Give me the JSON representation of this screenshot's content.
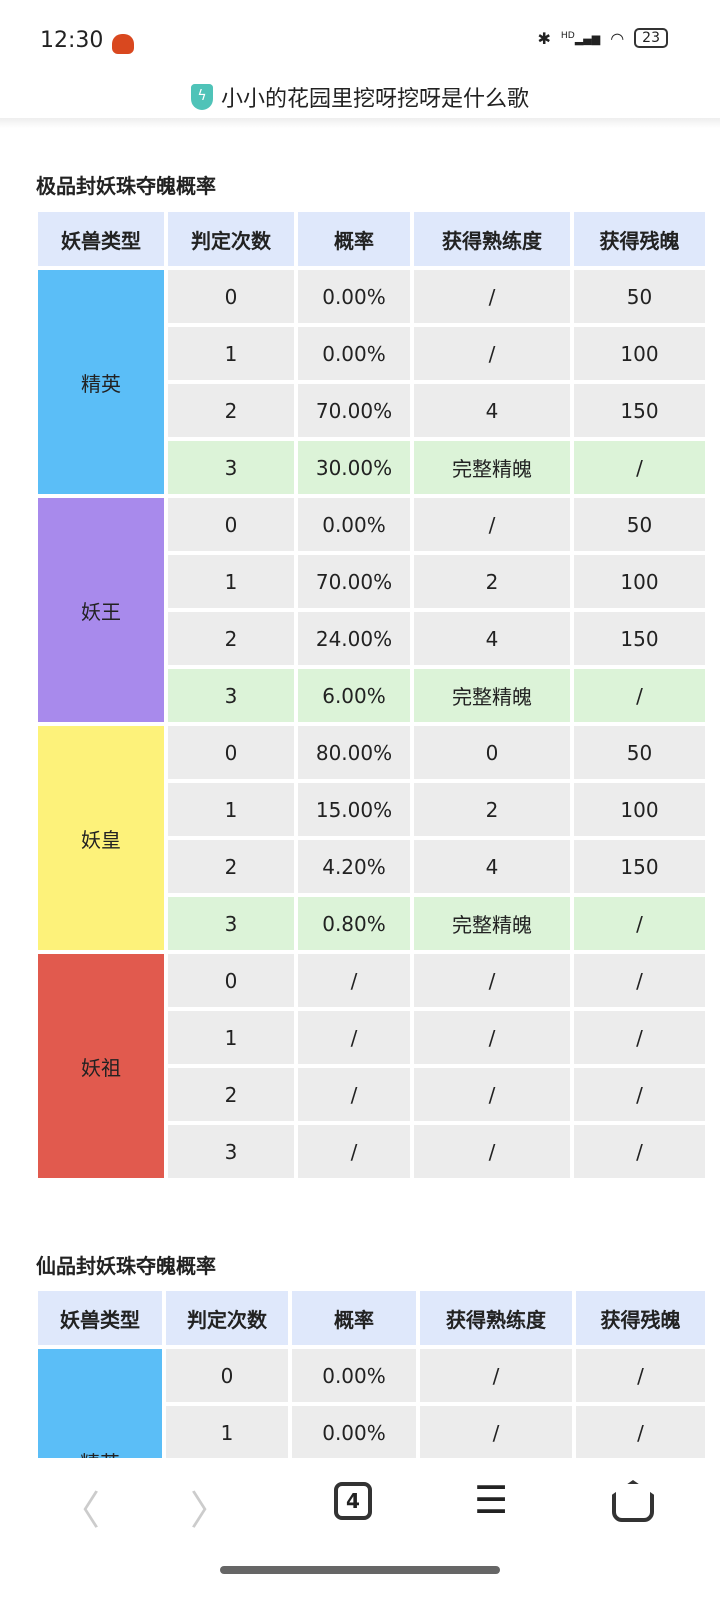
{
  "status": {
    "time": "12:30",
    "battery": "23",
    "network": "HD"
  },
  "urlbar": {
    "title": "小小的花园里挖呀挖呀是什么歌",
    "icon": "shield-bolt-icon"
  },
  "colors": {
    "elite": "#5bbef7",
    "king": "#a88aec",
    "emperor": "#fdf27a",
    "ancestor": "#e15a4e",
    "header": "#dfe8fb",
    "cell": "#ececec",
    "highlight": "#dcf3d8"
  },
  "headers": [
    "妖兽类型",
    "判定次数",
    "概率",
    "获得熟练度",
    "获得残魄"
  ],
  "tables": [
    {
      "title": "极品封妖珠夺魄概率",
      "groups": [
        {
          "type": "精英",
          "color": "#5bbef7",
          "rows": [
            [
              "0",
              "0.00%",
              "/",
              "50"
            ],
            [
              "1",
              "0.00%",
              "/",
              "100"
            ],
            [
              "2",
              "70.00%",
              "4",
              "150"
            ],
            [
              "3",
              "30.00%",
              "完整精魄",
              "/"
            ]
          ]
        },
        {
          "type": "妖王",
          "color": "#a88aec",
          "rows": [
            [
              "0",
              "0.00%",
              "/",
              "50"
            ],
            [
              "1",
              "70.00%",
              "2",
              "100"
            ],
            [
              "2",
              "24.00%",
              "4",
              "150"
            ],
            [
              "3",
              "6.00%",
              "完整精魄",
              "/"
            ]
          ]
        },
        {
          "type": "妖皇",
          "color": "#fdf27a",
          "rows": [
            [
              "0",
              "80.00%",
              "0",
              "50"
            ],
            [
              "1",
              "15.00%",
              "2",
              "100"
            ],
            [
              "2",
              "4.20%",
              "4",
              "150"
            ],
            [
              "3",
              "0.80%",
              "完整精魄",
              "/"
            ]
          ]
        },
        {
          "type": "妖祖",
          "color": "#e15a4e",
          "rows": [
            [
              "0",
              "/",
              "/",
              "/"
            ],
            [
              "1",
              "/",
              "/",
              "/"
            ],
            [
              "2",
              "/",
              "/",
              "/"
            ],
            [
              "3",
              "/",
              "/",
              "/"
            ]
          ]
        }
      ]
    },
    {
      "title": "仙品封妖珠夺魄概率",
      "groups": [
        {
          "type": "精英",
          "color": "#5bbef7",
          "rows": [
            [
              "0",
              "0.00%",
              "/",
              "/"
            ],
            [
              "1",
              "0.00%",
              "/",
              "/"
            ]
          ]
        }
      ]
    }
  ],
  "nav": {
    "back": "back-icon",
    "forward": "forward-icon",
    "tabs": "4",
    "menu": "menu-icon",
    "home": "home-icon"
  }
}
